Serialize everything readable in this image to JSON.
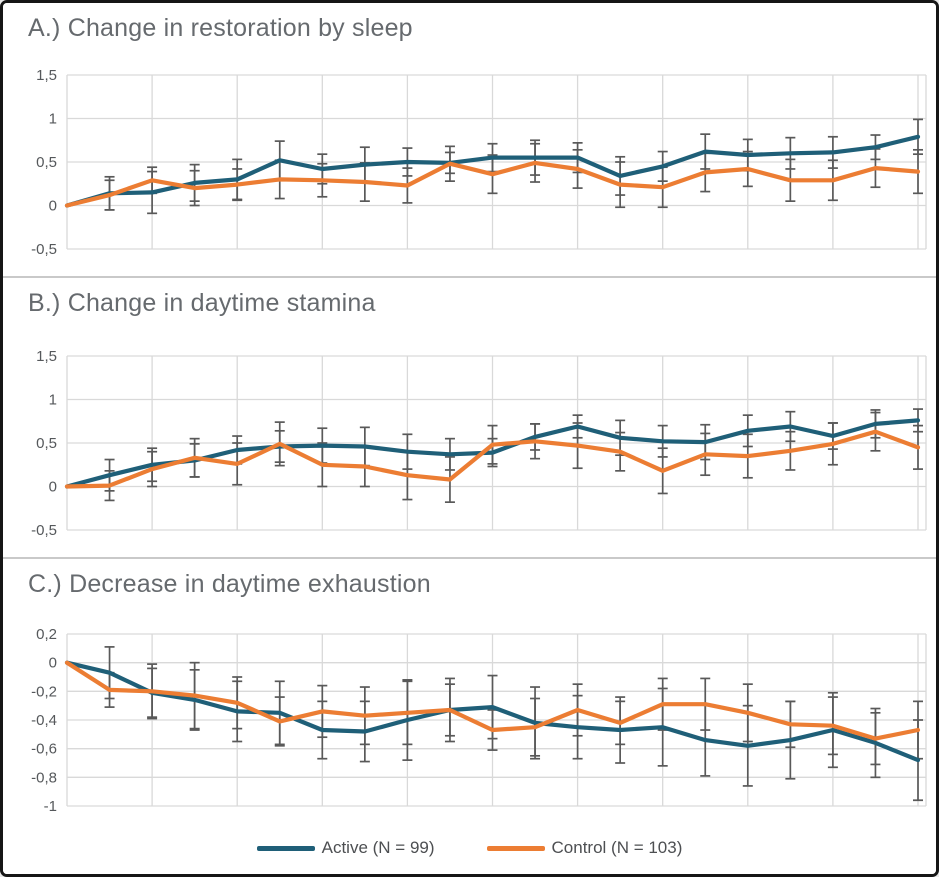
{
  "figure": {
    "colors": {
      "active": "#1F5F78",
      "control": "#EC7D33",
      "error_bar": "#595959",
      "gridline": "#D9D9D9",
      "title_text": "#666A6E",
      "tick_text": "#55585B",
      "frame": "#161616",
      "separator": "#C9C9C9"
    },
    "legend": {
      "position": "bottom-center",
      "items": [
        {
          "label": "Active (N = 99)",
          "color": "#1F5F78"
        },
        {
          "label": "Control (N = 103)",
          "color": "#EC7D33"
        }
      ]
    }
  },
  "chart_data": [
    {
      "type": "line",
      "title": "A.) Change in restoration by sleep",
      "xlabel": "",
      "ylabel": "",
      "x": [
        0,
        1,
        2,
        3,
        4,
        5,
        6,
        7,
        8,
        9,
        10,
        11,
        12,
        13,
        14,
        15,
        16,
        17,
        18,
        19,
        20
      ],
      "x_tick_labels": [],
      "ylim": [
        -0.5,
        1.5
      ],
      "yticks": [
        1.5,
        1,
        0.5,
        0,
        -0.5
      ],
      "ytick_labels": [
        "1,5",
        "1",
        "0,5",
        "0",
        "-0,5"
      ],
      "grid": true,
      "error_bars": true,
      "series": [
        {
          "name": "Active (N = 99)",
          "color": "#1F5F78",
          "values": [
            0,
            0.14,
            0.15,
            0.26,
            0.3,
            0.52,
            0.42,
            0.47,
            0.5,
            0.49,
            0.55,
            0.55,
            0.55,
            0.34,
            0.45,
            0.62,
            0.58,
            0.6,
            0.61,
            0.67,
            0.79
          ],
          "err": [
            0,
            0.19,
            0.24,
            0.21,
            0.23,
            0.22,
            0.17,
            0.2,
            0.16,
            0.12,
            0.16,
            0.2,
            0.17,
            0.22,
            0.17,
            0.2,
            0.18,
            0.18,
            0.18,
            0.14,
            0.2
          ]
        },
        {
          "name": "Control (N = 103)",
          "color": "#EC7D33",
          "values": [
            0,
            0.12,
            0.29,
            0.2,
            0.24,
            0.3,
            0.29,
            0.27,
            0.23,
            0.48,
            0.36,
            0.49,
            0.42,
            0.24,
            0.21,
            0.38,
            0.42,
            0.29,
            0.29,
            0.43,
            0.39
          ],
          "err": [
            0,
            0.17,
            0.15,
            0.2,
            0.18,
            0.22,
            0.19,
            0.22,
            0.2,
            0.2,
            0.22,
            0.22,
            0.22,
            0.26,
            0.23,
            0.22,
            0.2,
            0.24,
            0.23,
            0.22,
            0.25
          ]
        }
      ]
    },
    {
      "type": "line",
      "title": "B.) Change in daytime stamina",
      "xlabel": "",
      "ylabel": "",
      "x": [
        0,
        1,
        2,
        3,
        4,
        5,
        6,
        7,
        8,
        9,
        10,
        11,
        12,
        13,
        14,
        15,
        16,
        17,
        18,
        19,
        20
      ],
      "x_tick_labels": [],
      "ylim": [
        -0.5,
        1.5
      ],
      "yticks": [
        1.5,
        1,
        0.5,
        0,
        -0.5
      ],
      "ytick_labels": [
        "1,5",
        "1",
        "0,5",
        "0",
        "-0,5"
      ],
      "grid": true,
      "error_bars": true,
      "series": [
        {
          "name": "Active (N = 99)",
          "color": "#1F5F78",
          "values": [
            0,
            0.13,
            0.25,
            0.3,
            0.42,
            0.46,
            0.47,
            0.46,
            0.4,
            0.37,
            0.39,
            0.57,
            0.69,
            0.56,
            0.52,
            0.51,
            0.64,
            0.69,
            0.58,
            0.72,
            0.76
          ],
          "err": [
            0,
            0.18,
            0.19,
            0.19,
            0.16,
            0.18,
            0.2,
            0.22,
            0.2,
            0.18,
            0.16,
            0.15,
            0.13,
            0.2,
            0.18,
            0.2,
            0.18,
            0.17,
            0.15,
            0.16,
            0.13
          ]
        },
        {
          "name": "Control (N = 103)",
          "color": "#EC7D33",
          "values": [
            0,
            0.01,
            0.2,
            0.33,
            0.26,
            0.49,
            0.25,
            0.23,
            0.13,
            0.08,
            0.48,
            0.52,
            0.47,
            0.4,
            0.18,
            0.37,
            0.35,
            0.41,
            0.49,
            0.63,
            0.45
          ],
          "err": [
            0,
            0.17,
            0.2,
            0.22,
            0.24,
            0.25,
            0.25,
            0.23,
            0.28,
            0.26,
            0.22,
            0.2,
            0.26,
            0.22,
            0.26,
            0.24,
            0.25,
            0.22,
            0.24,
            0.22,
            0.25
          ]
        }
      ]
    },
    {
      "type": "line",
      "title": "C.) Decrease in daytime exhaustion",
      "xlabel": "",
      "ylabel": "",
      "x": [
        0,
        1,
        2,
        3,
        4,
        5,
        6,
        7,
        8,
        9,
        10,
        11,
        12,
        13,
        14,
        15,
        16,
        17,
        18,
        19,
        20
      ],
      "x_tick_labels": [],
      "ylim": [
        -1,
        0.2
      ],
      "yticks": [
        0.2,
        0,
        -0.2,
        -0.4,
        -0.6,
        -0.8,
        -1
      ],
      "ytick_labels": [
        "0,2",
        "0",
        "-0,2",
        "-0,4",
        "-0,6",
        "-0,8",
        "-1"
      ],
      "grid": true,
      "error_bars": true,
      "series": [
        {
          "name": "Active (N = 99)",
          "color": "#1F5F78",
          "values": [
            0,
            -0.07,
            -0.21,
            -0.26,
            -0.34,
            -0.35,
            -0.47,
            -0.48,
            -0.4,
            -0.33,
            -0.31,
            -0.42,
            -0.45,
            -0.47,
            -0.45,
            -0.54,
            -0.58,
            -0.54,
            -0.47,
            -0.56,
            -0.68
          ],
          "err": [
            0,
            0.18,
            0.17,
            0.21,
            0.21,
            0.22,
            0.2,
            0.21,
            0.28,
            0.22,
            0.22,
            0.25,
            0.22,
            0.23,
            0.27,
            0.25,
            0.28,
            0.27,
            0.26,
            0.24,
            0.28
          ]
        },
        {
          "name": "Control (N = 103)",
          "color": "#EC7D33",
          "values": [
            0,
            -0.19,
            -0.2,
            -0.23,
            -0.28,
            -0.41,
            -0.34,
            -0.37,
            -0.35,
            -0.33,
            -0.47,
            -0.45,
            -0.33,
            -0.42,
            -0.29,
            -0.29,
            -0.35,
            -0.43,
            -0.44,
            -0.53,
            -0.47
          ],
          "err": [
            0,
            0.12,
            0.19,
            0.23,
            0.18,
            0.17,
            0.18,
            0.2,
            0.22,
            0.18,
            0.14,
            0.2,
            0.18,
            0.15,
            0.18,
            0.18,
            0.2,
            0.16,
            0.2,
            0.18,
            0.2
          ]
        }
      ]
    }
  ]
}
